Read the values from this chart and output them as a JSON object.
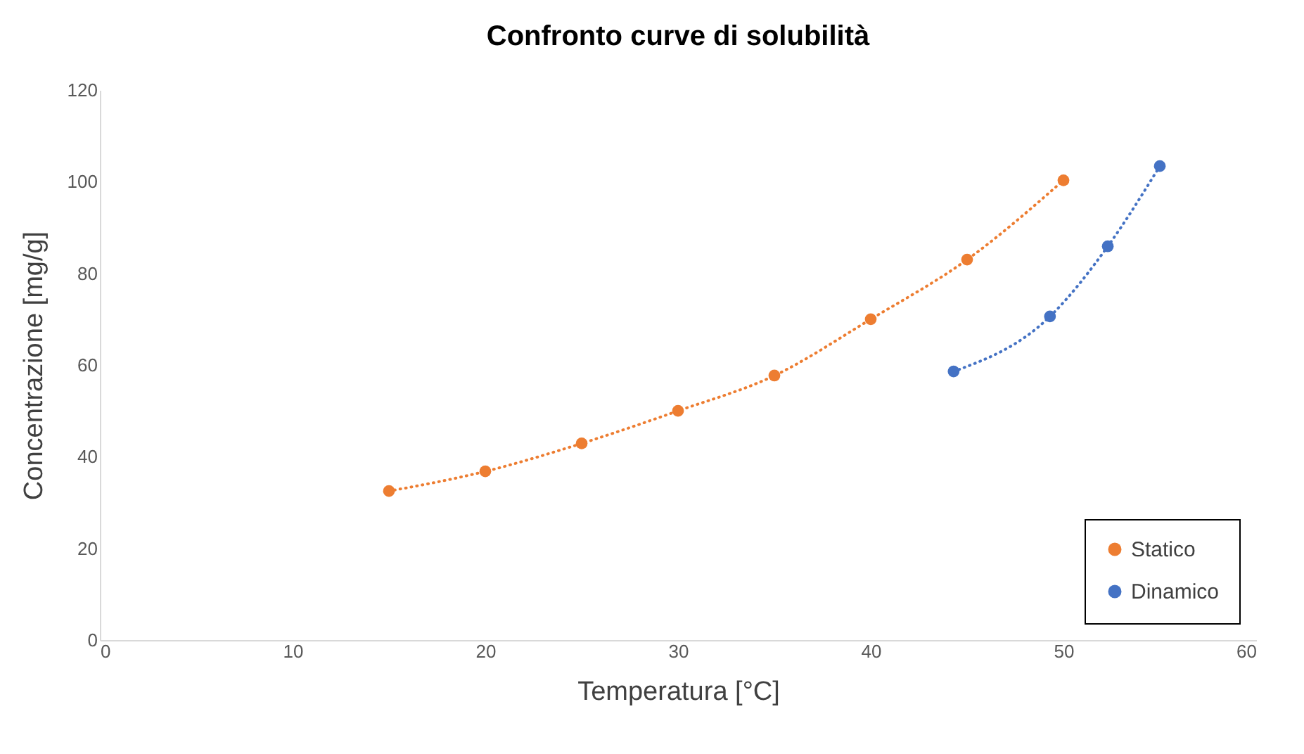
{
  "chart_data": {
    "type": "line",
    "title": "Confronto curve di solubilità",
    "xlabel": "Temperatura  [°C]",
    "ylabel": "Concentrazione  [mg/g]",
    "xlim": [
      0,
      60
    ],
    "xticks": [
      0,
      10,
      20,
      30,
      40,
      50,
      60
    ],
    "ylim": [
      0,
      120
    ],
    "yticks": [
      0,
      20,
      40,
      60,
      80,
      100,
      120
    ],
    "grid": false,
    "legend": "bottom right",
    "marker": "circle",
    "line_style": "dotted",
    "series": [
      {
        "name": "Statico",
        "color": "#ed7d31",
        "x": [
          15,
          20,
          25,
          30,
          35,
          40,
          45,
          50
        ],
        "values": [
          32.5,
          36.8,
          42.9,
          50,
          57.7,
          70,
          83,
          100.3
        ]
      },
      {
        "name": "Dinamico",
        "color": "#4472c4",
        "x": [
          44.3,
          49.3,
          52.3,
          55
        ],
        "values": [
          58.6,
          70.6,
          85.9,
          103.4
        ]
      }
    ]
  }
}
